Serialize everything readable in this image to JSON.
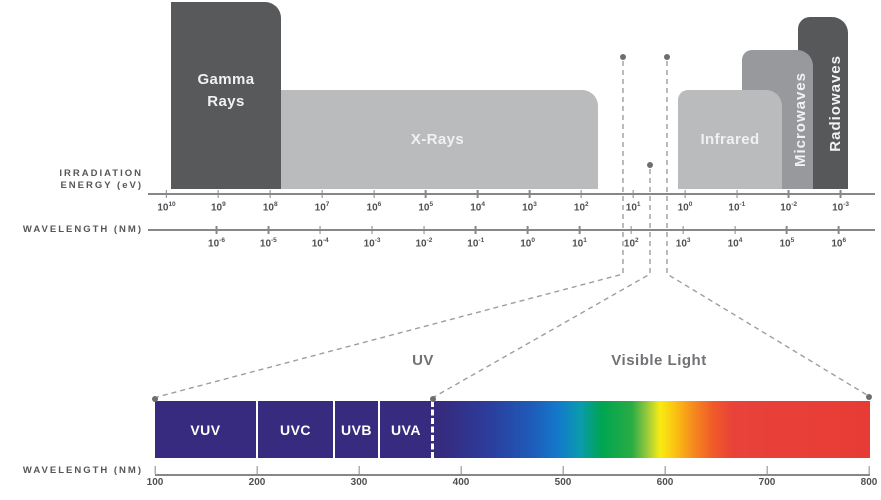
{
  "upper": {
    "energy_axis": {
      "label_line1": "IRRADIATION",
      "label_line2": "ENERGY (eV)",
      "ticks": [
        {
          "b": "10",
          "e": "10"
        },
        {
          "b": "10",
          "e": "9"
        },
        {
          "b": "10",
          "e": "8"
        },
        {
          "b": "10",
          "e": "7"
        },
        {
          "b": "10",
          "e": "6"
        },
        {
          "b": "10",
          "e": "5"
        },
        {
          "b": "10",
          "e": "4"
        },
        {
          "b": "10",
          "e": "3"
        },
        {
          "b": "10",
          "e": "2"
        },
        {
          "b": "10",
          "e": "1"
        },
        {
          "b": "10",
          "e": "0"
        },
        {
          "b": "10",
          "e": "-1"
        },
        {
          "b": "10",
          "e": "-2"
        },
        {
          "b": "10",
          "e": "-3"
        }
      ]
    },
    "wavelength_axis": {
      "label": "WAVELENGTH (NM)",
      "ticks": [
        {
          "b": "10",
          "e": "-6"
        },
        {
          "b": "10",
          "e": "-5"
        },
        {
          "b": "10",
          "e": "-4"
        },
        {
          "b": "10",
          "e": "-3"
        },
        {
          "b": "10",
          "e": "-2"
        },
        {
          "b": "10",
          "e": "-1"
        },
        {
          "b": "10",
          "e": "0"
        },
        {
          "b": "10",
          "e": "1"
        },
        {
          "b": "10",
          "e": "2"
        },
        {
          "b": "10",
          "e": "3"
        },
        {
          "b": "10",
          "e": "4"
        },
        {
          "b": "10",
          "e": "5"
        },
        {
          "b": "10",
          "e": "6"
        }
      ]
    },
    "bands": {
      "gamma": "Gamma\nRays",
      "xrays": "X-Rays",
      "infrared": "Infrared",
      "microwaves": "Microwaves",
      "radiowaves": "Radiowaves"
    }
  },
  "callout": {
    "uv": "UV",
    "visible": "Visible Light"
  },
  "lower": {
    "segments": [
      "VUV",
      "UVC",
      "UVB",
      "UVA"
    ],
    "axis_label": "WAVELENGTH (NM)",
    "ticks": [
      "100",
      "200",
      "300",
      "400",
      "500",
      "600",
      "700",
      "800"
    ]
  },
  "colors": {
    "band_dark": "#58595b",
    "band_light": "#b9bbbd",
    "band_medium": "#97999c",
    "uv_bar_indigo": "#362b7e",
    "spectrum_stops": [
      "#362b7e",
      "#1f5ab8",
      "#1379cb",
      "#00a551",
      "#f7ec13",
      "#f68b1f",
      "#e9423a"
    ],
    "axis_gray": "#85878a",
    "text_gray": "#55565a",
    "callout_gray": "#9c9ea1",
    "label_white": "#f1f1f2"
  }
}
